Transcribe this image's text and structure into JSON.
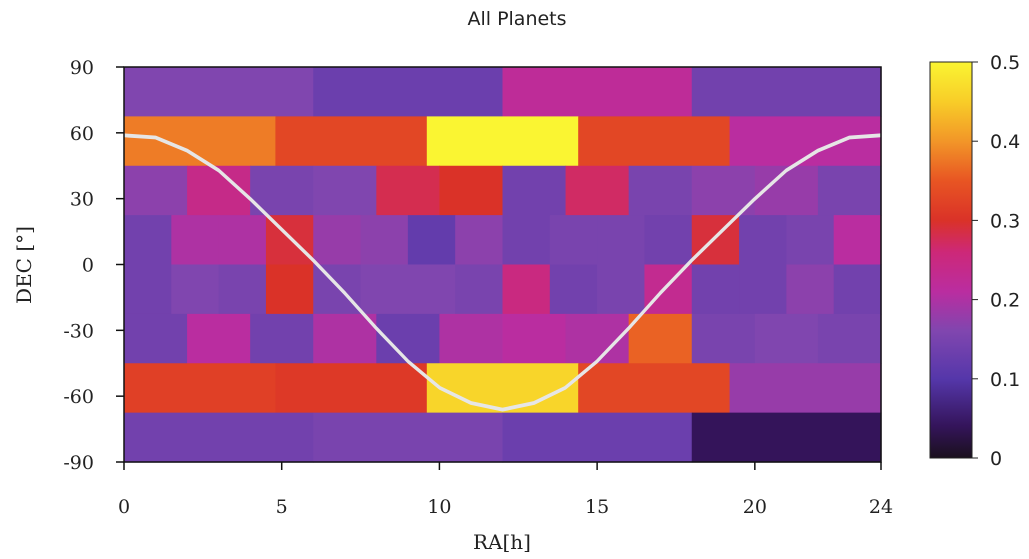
{
  "chart_data": {
    "type": "heatmap",
    "title": "All Planets",
    "xlabel": "RA[h]",
    "ylabel": "DEC [°]",
    "xlim": [
      0,
      24
    ],
    "ylim": [
      -90,
      90
    ],
    "xticks": [
      0,
      5,
      10,
      15,
      20,
      24
    ],
    "yticks": [
      90,
      60,
      30,
      0,
      -30,
      -60,
      -90
    ],
    "colorbar": {
      "min": 0,
      "max": 0.5,
      "ticks": [
        0,
        0.1,
        0.2,
        0.3,
        0.4,
        0.5
      ],
      "tick_labels": [
        "0",
        "0.1",
        "0.2",
        "0.3",
        "0.4",
        "0.5"
      ],
      "colormap": "plasma-like"
    },
    "cells": [
      {
        "ra": [
          0,
          6
        ],
        "dec": [
          67.5,
          90
        ],
        "value": 0.16
      },
      {
        "ra": [
          6,
          12
        ],
        "dec": [
          67.5,
          90
        ],
        "value": 0.13
      },
      {
        "ra": [
          12,
          18
        ],
        "dec": [
          67.5,
          90
        ],
        "value": 0.22
      },
      {
        "ra": [
          18,
          24
        ],
        "dec": [
          67.5,
          90
        ],
        "value": 0.14
      },
      {
        "ra": [
          0,
          4.8
        ],
        "dec": [
          45,
          67.5
        ],
        "value": 0.38
      },
      {
        "ra": [
          4.8,
          9.6
        ],
        "dec": [
          45,
          67.5
        ],
        "value": 0.33
      },
      {
        "ra": [
          9.6,
          14.4
        ],
        "dec": [
          45,
          67.5
        ],
        "value": 0.5
      },
      {
        "ra": [
          14.4,
          19.2
        ],
        "dec": [
          45,
          67.5
        ],
        "value": 0.33
      },
      {
        "ra": [
          19.2,
          24
        ],
        "dec": [
          45,
          67.5
        ],
        "value": 0.21
      },
      {
        "ra": [
          0,
          2
        ],
        "dec": [
          22.5,
          45
        ],
        "value": 0.17
      },
      {
        "ra": [
          2,
          4
        ],
        "dec": [
          22.5,
          45
        ],
        "value": 0.24
      },
      {
        "ra": [
          4,
          6
        ],
        "dec": [
          22.5,
          45
        ],
        "value": 0.15
      },
      {
        "ra": [
          6,
          8
        ],
        "dec": [
          22.5,
          45
        ],
        "value": 0.16
      },
      {
        "ra": [
          8,
          10
        ],
        "dec": [
          22.5,
          45
        ],
        "value": 0.28
      },
      {
        "ra": [
          10,
          12
        ],
        "dec": [
          22.5,
          45
        ],
        "value": 0.3
      },
      {
        "ra": [
          12,
          14
        ],
        "dec": [
          22.5,
          45
        ],
        "value": 0.14
      },
      {
        "ra": [
          14,
          16
        ],
        "dec": [
          22.5,
          45
        ],
        "value": 0.27
      },
      {
        "ra": [
          16,
          18
        ],
        "dec": [
          22.5,
          45
        ],
        "value": 0.15
      },
      {
        "ra": [
          18,
          20
        ],
        "dec": [
          22.5,
          45
        ],
        "value": 0.17
      },
      {
        "ra": [
          20,
          22
        ],
        "dec": [
          22.5,
          45
        ],
        "value": 0.18
      },
      {
        "ra": [
          22,
          24
        ],
        "dec": [
          22.5,
          45
        ],
        "value": 0.15
      },
      {
        "ra": [
          0,
          1.5
        ],
        "dec": [
          0,
          22.5
        ],
        "value": 0.14
      },
      {
        "ra": [
          1.5,
          3
        ],
        "dec": [
          0,
          22.5
        ],
        "value": 0.2
      },
      {
        "ra": [
          3,
          4.5
        ],
        "dec": [
          0,
          22.5
        ],
        "value": 0.2
      },
      {
        "ra": [
          4.5,
          6
        ],
        "dec": [
          0,
          22.5
        ],
        "value": 0.29
      },
      {
        "ra": [
          6,
          7.5
        ],
        "dec": [
          0,
          22.5
        ],
        "value": 0.18
      },
      {
        "ra": [
          7.5,
          9
        ],
        "dec": [
          0,
          22.5
        ],
        "value": 0.17
      },
      {
        "ra": [
          9,
          10.5
        ],
        "dec": [
          0,
          22.5
        ],
        "value": 0.12
      },
      {
        "ra": [
          10.5,
          12
        ],
        "dec": [
          0,
          22.5
        ],
        "value": 0.17
      },
      {
        "ra": [
          12,
          13.5
        ],
        "dec": [
          0,
          22.5
        ],
        "value": 0.14
      },
      {
        "ra": [
          13.5,
          15
        ],
        "dec": [
          0,
          22.5
        ],
        "value": 0.15
      },
      {
        "ra": [
          15,
          16.5
        ],
        "dec": [
          0,
          22.5
        ],
        "value": 0.15
      },
      {
        "ra": [
          16.5,
          18
        ],
        "dec": [
          0,
          22.5
        ],
        "value": 0.14
      },
      {
        "ra": [
          18,
          19.5
        ],
        "dec": [
          0,
          22.5
        ],
        "value": 0.29
      },
      {
        "ra": [
          19.5,
          21
        ],
        "dec": [
          0,
          22.5
        ],
        "value": 0.14
      },
      {
        "ra": [
          21,
          22.5
        ],
        "dec": [
          0,
          22.5
        ],
        "value": 0.15
      },
      {
        "ra": [
          22.5,
          24
        ],
        "dec": [
          0,
          22.5
        ],
        "value": 0.21
      },
      {
        "ra": [
          0,
          1.5
        ],
        "dec": [
          -22.5,
          0
        ],
        "value": 0.14
      },
      {
        "ra": [
          1.5,
          3
        ],
        "dec": [
          -22.5,
          0
        ],
        "value": 0.16
      },
      {
        "ra": [
          3,
          4.5
        ],
        "dec": [
          -22.5,
          0
        ],
        "value": 0.15
      },
      {
        "ra": [
          4.5,
          6
        ],
        "dec": [
          -22.5,
          0
        ],
        "value": 0.3
      },
      {
        "ra": [
          6,
          7.5
        ],
        "dec": [
          -22.5,
          0
        ],
        "value": 0.15
      },
      {
        "ra": [
          7.5,
          9
        ],
        "dec": [
          -22.5,
          0
        ],
        "value": 0.16
      },
      {
        "ra": [
          9,
          10.5
        ],
        "dec": [
          -22.5,
          0
        ],
        "value": 0.16
      },
      {
        "ra": [
          10.5,
          12
        ],
        "dec": [
          -22.5,
          0
        ],
        "value": 0.15
      },
      {
        "ra": [
          12,
          13.5
        ],
        "dec": [
          -22.5,
          0
        ],
        "value": 0.25
      },
      {
        "ra": [
          13.5,
          15
        ],
        "dec": [
          -22.5,
          0
        ],
        "value": 0.14
      },
      {
        "ra": [
          15,
          16.5
        ],
        "dec": [
          -22.5,
          0
        ],
        "value": 0.15
      },
      {
        "ra": [
          16.5,
          18
        ],
        "dec": [
          -22.5,
          0
        ],
        "value": 0.23
      },
      {
        "ra": [
          18,
          19.5
        ],
        "dec": [
          -22.5,
          0
        ],
        "value": 0.14
      },
      {
        "ra": [
          19.5,
          21
        ],
        "dec": [
          -22.5,
          0
        ],
        "value": 0.14
      },
      {
        "ra": [
          21,
          22.5
        ],
        "dec": [
          -22.5,
          0
        ],
        "value": 0.17
      },
      {
        "ra": [
          22.5,
          24
        ],
        "dec": [
          -22.5,
          0
        ],
        "value": 0.14
      },
      {
        "ra": [
          0,
          2
        ],
        "dec": [
          -45,
          -22.5
        ],
        "value": 0.14
      },
      {
        "ra": [
          2,
          4
        ],
        "dec": [
          -45,
          -22.5
        ],
        "value": 0.21
      },
      {
        "ra": [
          4,
          6
        ],
        "dec": [
          -45,
          -22.5
        ],
        "value": 0.14
      },
      {
        "ra": [
          6,
          8
        ],
        "dec": [
          -45,
          -22.5
        ],
        "value": 0.2
      },
      {
        "ra": [
          8,
          10
        ],
        "dec": [
          -45,
          -22.5
        ],
        "value": 0.13
      },
      {
        "ra": [
          10,
          12
        ],
        "dec": [
          -45,
          -22.5
        ],
        "value": 0.2
      },
      {
        "ra": [
          12,
          14
        ],
        "dec": [
          -45,
          -22.5
        ],
        "value": 0.21
      },
      {
        "ra": [
          14,
          16
        ],
        "dec": [
          -45,
          -22.5
        ],
        "value": 0.2
      },
      {
        "ra": [
          16,
          18
        ],
        "dec": [
          -45,
          -22.5
        ],
        "value": 0.36
      },
      {
        "ra": [
          18,
          20
        ],
        "dec": [
          -45,
          -22.5
        ],
        "value": 0.15
      },
      {
        "ra": [
          20,
          22
        ],
        "dec": [
          -45,
          -22.5
        ],
        "value": 0.16
      },
      {
        "ra": [
          22,
          24
        ],
        "dec": [
          -45,
          -22.5
        ],
        "value": 0.15
      },
      {
        "ra": [
          0,
          4.8
        ],
        "dec": [
          -67.5,
          -45
        ],
        "value": 0.32
      },
      {
        "ra": [
          4.8,
          9.6
        ],
        "dec": [
          -67.5,
          -45
        ],
        "value": 0.31
      },
      {
        "ra": [
          9.6,
          14.4
        ],
        "dec": [
          -67.5,
          -45
        ],
        "value": 0.46
      },
      {
        "ra": [
          14.4,
          19.2
        ],
        "dec": [
          -67.5,
          -45
        ],
        "value": 0.33
      },
      {
        "ra": [
          19.2,
          24
        ],
        "dec": [
          -67.5,
          -45
        ],
        "value": 0.18
      },
      {
        "ra": [
          0,
          6
        ],
        "dec": [
          -90,
          -67.5
        ],
        "value": 0.14
      },
      {
        "ra": [
          6,
          12
        ],
        "dec": [
          -90,
          -67.5
        ],
        "value": 0.15
      },
      {
        "ra": [
          12,
          18
        ],
        "dec": [
          -90,
          -67.5
        ],
        "value": 0.13
      },
      {
        "ra": [
          18,
          24
        ],
        "dec": [
          -90,
          -67.5
        ],
        "value": 0.04
      }
    ],
    "overlay_line": {
      "color": "#e6e6e6",
      "ra": [
        0,
        1,
        2,
        3,
        4,
        5,
        6,
        7,
        8,
        9,
        10,
        11,
        12,
        13,
        14,
        15,
        16,
        17,
        18,
        19,
        20,
        21,
        22,
        23,
        24
      ],
      "dec": [
        59,
        58,
        52,
        43,
        30,
        16,
        2,
        -13,
        -29,
        -44,
        -56,
        -63,
        -66,
        -63,
        -56,
        -44,
        -29,
        -13,
        2,
        16,
        30,
        43,
        52,
        58,
        59
      ]
    }
  }
}
